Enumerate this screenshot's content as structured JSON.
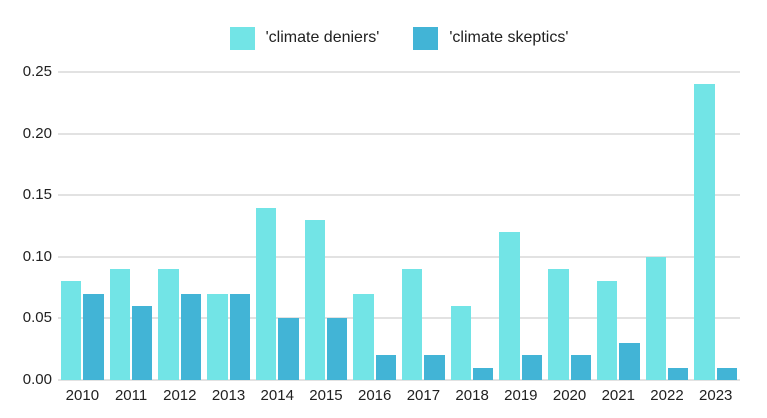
{
  "chart_data": {
    "type": "bar",
    "title": "",
    "xlabel": "",
    "ylabel": "",
    "categories": [
      "2010",
      "2011",
      "2012",
      "2013",
      "2014",
      "2015",
      "2016",
      "2017",
      "2018",
      "2019",
      "2020",
      "2021",
      "2022",
      "2023"
    ],
    "series": [
      {
        "name": "'climate deniers'",
        "color": "#72E4E6",
        "values": [
          0.08,
          0.09,
          0.09,
          0.07,
          0.14,
          0.13,
          0.07,
          0.09,
          0.06,
          0.12,
          0.09,
          0.08,
          0.1,
          0.24
        ]
      },
      {
        "name": "'climate skeptics'",
        "color": "#42B4D6",
        "values": [
          0.07,
          0.06,
          0.07,
          0.07,
          0.05,
          0.05,
          0.02,
          0.02,
          0.01,
          0.02,
          0.02,
          0.03,
          0.01,
          0.01
        ]
      }
    ],
    "ylim": [
      0,
      0.25
    ],
    "yticks": [
      0,
      0.05,
      0.1,
      0.15,
      0.2,
      0.25
    ],
    "ytick_labels": [
      "0.00",
      "0.05",
      "0.10",
      "0.15",
      "0.20",
      "0.25"
    ],
    "grid": true,
    "legend_position": "top-center"
  },
  "colors": {
    "background": "#ffffff",
    "gridline": "#e2e2e2",
    "text": "#212121"
  }
}
